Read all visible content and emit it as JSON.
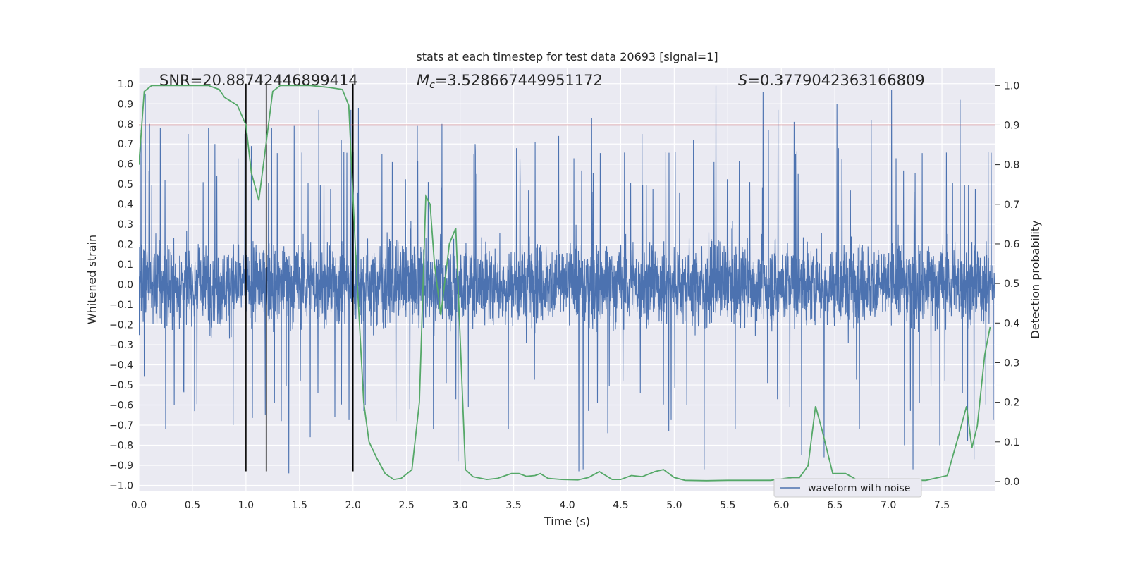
{
  "chart_data": {
    "type": "line",
    "title": "stats at each timestep for test data 20693 [signal=1]",
    "xlabel": "Time (s)",
    "ylabel": "Whitened strain",
    "y2label": "Detection probability",
    "xlim": [
      0.0,
      8.0
    ],
    "ylim": [
      -1.03,
      1.08
    ],
    "y2lim": [
      -0.025,
      1.045
    ],
    "grid": true,
    "legend_position": "bottom-right",
    "x_ticks": [
      "0.0",
      "0.5",
      "1.0",
      "1.5",
      "2.0",
      "2.5",
      "3.0",
      "3.5",
      "4.0",
      "4.5",
      "5.0",
      "5.5",
      "6.0",
      "6.5",
      "7.0",
      "7.5"
    ],
    "y_ticks": [
      "1.0",
      "0.9",
      "0.8",
      "0.7",
      "0.6",
      "0.5",
      "0.4",
      "0.3",
      "0.2",
      "0.1",
      "0.0",
      "−0.1",
      "−0.2",
      "−0.3",
      "−0.4",
      "−0.5",
      "−0.6",
      "−0.7",
      "−0.8",
      "−0.9",
      "−1.0"
    ],
    "y2_ticks": [
      "1.0",
      "0.9",
      "0.8",
      "0.7",
      "0.6",
      "0.5",
      "0.4",
      "0.3",
      "0.2",
      "0.1",
      "0.0"
    ],
    "annotations": {
      "snr": "SNR=20.88742446899414",
      "mc_symbol": "M",
      "mc_sub": "c",
      "mc_value": "=3.528667449951172",
      "s_symbol": "S",
      "s_value": "=0.3779042363166809"
    },
    "series": [
      {
        "name": "waveform with noise",
        "color": "#4c72b0",
        "kind": "noisy-waveform",
        "note_envelope": "dense noise roughly within ±0.45 with spikes up to about ±1.0",
        "spikes": [
          [
            0.02,
            0.77
          ],
          [
            0.06,
            0.95
          ],
          [
            0.1,
            0.8
          ],
          [
            0.2,
            0.78
          ],
          [
            0.25,
            -0.72
          ],
          [
            0.33,
            -0.6
          ],
          [
            0.46,
            0.75
          ],
          [
            0.52,
            -0.63
          ],
          [
            0.65,
            0.78
          ],
          [
            0.71,
            0.7
          ],
          [
            0.88,
            -0.7
          ],
          [
            0.99,
            0.75
          ],
          [
            1.05,
            0.69
          ],
          [
            1.18,
            -0.65
          ],
          [
            1.24,
            0.78
          ],
          [
            1.33,
            -0.68
          ],
          [
            1.4,
            -0.94
          ],
          [
            1.45,
            0.79
          ],
          [
            1.6,
            -0.76
          ],
          [
            1.68,
            0.87
          ],
          [
            1.83,
            -0.66
          ],
          [
            1.89,
            0.72
          ],
          [
            1.98,
            0.87
          ],
          [
            2.05,
            0.88
          ],
          [
            2.1,
            -0.63
          ],
          [
            2.27,
            0.65
          ],
          [
            2.4,
            -0.68
          ],
          [
            2.53,
            -0.62
          ],
          [
            2.6,
            0.79
          ],
          [
            2.75,
            -0.72
          ],
          [
            2.83,
            0.8
          ],
          [
            2.98,
            -0.88
          ],
          [
            3.14,
            0.7
          ],
          [
            3.45,
            -0.72
          ],
          [
            3.7,
            0.71
          ],
          [
            3.92,
            0.74
          ],
          [
            4.11,
            -0.93
          ],
          [
            4.15,
            -0.92
          ],
          [
            4.23,
            0.83
          ],
          [
            4.38,
            -0.74
          ],
          [
            4.7,
            0.75
          ],
          [
            4.95,
            -0.73
          ],
          [
            5.18,
            0.72
          ],
          [
            5.28,
            -0.92
          ],
          [
            5.39,
            0.99
          ],
          [
            5.57,
            -0.72
          ],
          [
            5.83,
            0.96
          ],
          [
            5.88,
            0.77
          ],
          [
            5.97,
            0.87
          ],
          [
            6.12,
            0.81
          ],
          [
            6.19,
            -0.85
          ],
          [
            6.4,
            -0.86
          ],
          [
            6.52,
            0.9
          ],
          [
            6.73,
            -0.72
          ],
          [
            6.84,
            0.82
          ],
          [
            7.03,
            0.97
          ],
          [
            7.15,
            -0.8
          ],
          [
            7.23,
            -0.92
          ],
          [
            7.48,
            -0.8
          ],
          [
            7.67,
            0.92
          ],
          [
            7.74,
            -0.78
          ],
          [
            7.8,
            -0.87
          ]
        ]
      },
      {
        "name": "detection probability",
        "color": "#55a868",
        "axis": "right",
        "x": [
          0.0,
          0.05,
          0.12,
          0.2,
          0.35,
          0.5,
          0.65,
          0.75,
          0.8,
          0.92,
          1.0,
          1.05,
          1.12,
          1.2,
          1.25,
          1.32,
          1.45,
          1.6,
          1.78,
          1.9,
          1.96,
          2.02,
          2.1,
          2.15,
          2.22,
          2.3,
          2.38,
          2.45,
          2.55,
          2.62,
          2.68,
          2.72,
          2.76,
          2.82,
          2.9,
          2.96,
          3.05,
          3.12,
          3.25,
          3.35,
          3.48,
          3.55,
          3.62,
          3.7,
          3.75,
          3.82,
          3.95,
          4.1,
          4.2,
          4.3,
          4.42,
          4.5,
          4.6,
          4.7,
          4.82,
          4.9,
          5.0,
          5.1,
          5.3,
          5.5,
          5.7,
          5.9,
          6.1,
          6.17,
          6.25,
          6.32,
          6.38,
          6.48,
          6.6,
          6.7,
          6.85,
          7.1,
          7.35,
          7.55,
          7.65,
          7.73,
          7.78,
          7.83,
          7.9,
          7.95
        ],
        "values": [
          0.8,
          0.985,
          1.0,
          1.0,
          1.0,
          1.0,
          1.0,
          0.99,
          0.97,
          0.95,
          0.9,
          0.78,
          0.71,
          0.88,
          0.985,
          1.0,
          1.0,
          1.0,
          0.995,
          0.99,
          0.95,
          0.6,
          0.2,
          0.1,
          0.06,
          0.02,
          0.005,
          0.008,
          0.03,
          0.2,
          0.72,
          0.7,
          0.55,
          0.42,
          0.6,
          0.64,
          0.03,
          0.012,
          0.005,
          0.008,
          0.02,
          0.02,
          0.013,
          0.015,
          0.02,
          0.008,
          0.005,
          0.004,
          0.01,
          0.025,
          0.005,
          0.005,
          0.015,
          0.012,
          0.025,
          0.03,
          0.01,
          0.003,
          0.002,
          0.003,
          0.003,
          0.003,
          0.01,
          0.01,
          0.04,
          0.19,
          0.13,
          0.02,
          0.02,
          0.005,
          0.003,
          0.003,
          0.003,
          0.015,
          0.11,
          0.19,
          0.085,
          0.14,
          0.32,
          0.39
        ]
      },
      {
        "name": "threshold",
        "color": "#c44e52",
        "axis": "right",
        "values": [
          0.9
        ]
      },
      {
        "name": "event markers",
        "color": "#000000",
        "kind": "vlines",
        "x": [
          1.0,
          1.19,
          2.0
        ],
        "y_range": [
          -0.93,
          1.0
        ]
      }
    ]
  }
}
